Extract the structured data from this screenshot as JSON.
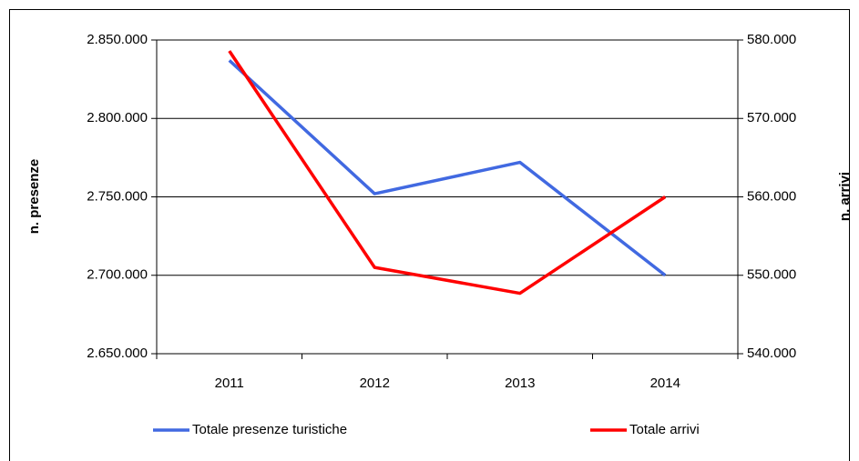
{
  "chart_data": {
    "type": "line",
    "categories": [
      "2011",
      "2012",
      "2013",
      "2014"
    ],
    "y_label": "n. presenze",
    "y2_label": "n. arrivi",
    "ylim": [
      2650000,
      2850000
    ],
    "yticks": [
      {
        "value": 2650000,
        "label": "2.650.000"
      },
      {
        "value": 2700000,
        "label": "2.700.000"
      },
      {
        "value": 2750000,
        "label": "2.750.000"
      },
      {
        "value": 2800000,
        "label": "2.800.000"
      },
      {
        "value": 2850000,
        "label": "2.850.000"
      }
    ],
    "y2lim": [
      540000,
      580000
    ],
    "y2ticks": [
      {
        "value": 540000,
        "label": "540.000"
      },
      {
        "value": 550000,
        "label": "550.000"
      },
      {
        "value": 560000,
        "label": "560.000"
      },
      {
        "value": 570000,
        "label": "570.000"
      },
      {
        "value": 580000,
        "label": "580.000"
      }
    ],
    "grid": true,
    "legend": "bottom",
    "series": [
      {
        "name": "Totale presenze turistiche",
        "color": "#4169e1",
        "values": [
          2837000,
          2752000,
          2772000,
          2700000
        ]
      },
      {
        "name": "Totale arrivi",
        "color": "#ff0000",
        "axis": "y2",
        "values": [
          578600,
          551000,
          547700,
          560000
        ]
      }
    ]
  }
}
